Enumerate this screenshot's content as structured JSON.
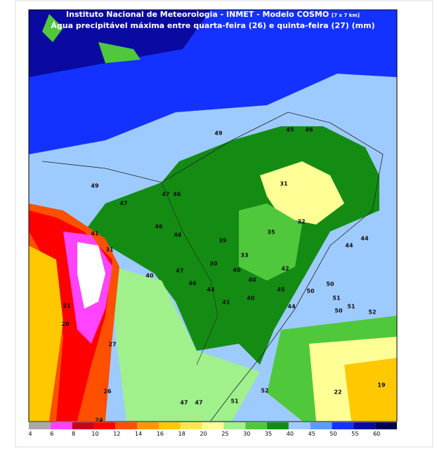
{
  "header": {
    "title": "Instituto Nacional de Meteorologia - INMET - Modelo COSMO",
    "resolution": "[7 x 7 km]",
    "subtitle": "Água precipitável máxima entre quarta-feira (26) e quinta-feira (27) (mm)"
  },
  "map_labels": [
    "45",
    "46",
    "49",
    "49",
    "47",
    "46",
    "31",
    "47",
    "46",
    "46",
    "35",
    "32",
    "41",
    "39",
    "33",
    "44",
    "44",
    "31",
    "47",
    "30",
    "40",
    "42",
    "40",
    "46",
    "40",
    "50",
    "44",
    "40",
    "45",
    "50",
    "51",
    "41",
    "50",
    "51",
    "52",
    "21",
    "44",
    "20",
    "27",
    "26",
    "52",
    "22",
    "19",
    "47",
    "47",
    "51",
    "24"
  ],
  "legend": {
    "ticks": [
      4,
      6,
      8,
      10,
      12,
      14,
      16,
      18,
      20,
      25,
      30,
      35,
      40,
      45,
      50,
      55,
      60
    ],
    "colors": [
      "#a9a9a9",
      "#ff44ff",
      "#c8001e",
      "#ff0000",
      "#ff5000",
      "#ff9600",
      "#ffc800",
      "#ffe650",
      "#ffff96",
      "#a0f08c",
      "#50c83c",
      "#148c14",
      "#9ecbff",
      "#5a9bff",
      "#1432ff",
      "#0a0aa0",
      "#000050"
    ]
  }
}
